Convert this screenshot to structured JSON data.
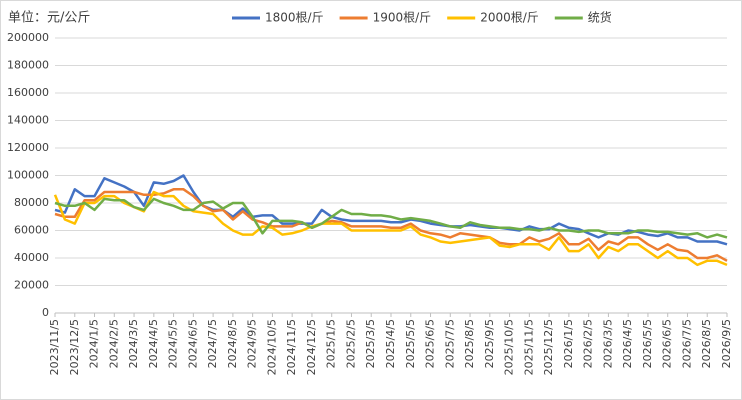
{
  "chart_data": {
    "type": "line",
    "unit_label": "单位：元/公斤",
    "categories": [
      "2023/11/5",
      null,
      "2023/12/5",
      null,
      "2024/1/5",
      null,
      "2024/2/5",
      null,
      "2024/3/5",
      null,
      "2024/4/5",
      null,
      "2024/5/5",
      null,
      "2024/6/5",
      null,
      "2024/7/5",
      null,
      "2024/8/5",
      null,
      "2024/9/5",
      null,
      "2024/10/5",
      null,
      "2024/11/5",
      null,
      "2024/12/5",
      null,
      "2025/1/5",
      null,
      "2025/2/5",
      null,
      "2025/3/5",
      null,
      "2025/4/5",
      null,
      "2025/5/5",
      null,
      "2025/6/5",
      null,
      "2025/7/5",
      null,
      "2025/8/5",
      null,
      "2025/9/5",
      null,
      "2025/10/5",
      null,
      "2025/11/5",
      null,
      "2025/12/5",
      null,
      "2026/1/5",
      null,
      "2026/2/5",
      null,
      "2026/3/5",
      null,
      "2026/4/5",
      null,
      "2026/5/5",
      null,
      "2026/6/5",
      null,
      "2026/7/5",
      null,
      "2026/8/5",
      null,
      "2026/9/5"
    ],
    "series": [
      {
        "name": "1800根/斤",
        "color": "#4472c4",
        "values": [
          75000,
          73000,
          90000,
          85000,
          85000,
          98000,
          95000,
          92000,
          88000,
          78000,
          95000,
          94000,
          96000,
          100000,
          88000,
          78000,
          75000,
          75000,
          70000,
          76000,
          70000,
          71000,
          71000,
          65000,
          65000,
          65000,
          65000,
          75000,
          70000,
          68000,
          67000,
          67000,
          67000,
          67000,
          66000,
          66000,
          68000,
          67000,
          65000,
          64000,
          63000,
          63000,
          64000,
          63000,
          62000,
          62000,
          61000,
          60000,
          63000,
          61000,
          61000,
          65000,
          62000,
          61000,
          58000,
          55000,
          58000,
          57000,
          60000,
          59000,
          57000,
          56000,
          58000,
          55000,
          55000,
          52000,
          52000,
          52000,
          50000
        ]
      },
      {
        "name": "1900根/斤",
        "color": "#ed7d31",
        "values": [
          72000,
          70000,
          70000,
          82000,
          82000,
          88000,
          88000,
          88000,
          88000,
          86000,
          86000,
          87000,
          90000,
          90000,
          85000,
          78000,
          74000,
          75000,
          68000,
          74000,
          68000,
          66000,
          63000,
          63000,
          63000,
          66000,
          62000,
          65000,
          67000,
          66000,
          63000,
          63000,
          63000,
          63000,
          62000,
          62000,
          65000,
          60000,
          58000,
          57000,
          55000,
          58000,
          57000,
          56000,
          55000,
          51000,
          50000,
          50000,
          55000,
          52000,
          54000,
          58000,
          50000,
          50000,
          54000,
          46000,
          52000,
          50000,
          55000,
          55000,
          50000,
          46000,
          50000,
          46000,
          45000,
          40000,
          40000,
          42000,
          38000
        ]
      },
      {
        "name": "2000根/斤",
        "color": "#ffc000",
        "values": [
          86000,
          68000,
          65000,
          80000,
          80000,
          85000,
          85000,
          80000,
          77000,
          74000,
          88000,
          85000,
          85000,
          78000,
          74000,
          73000,
          72000,
          65000,
          60000,
          57000,
          57000,
          63000,
          62000,
          57000,
          58000,
          60000,
          63000,
          65000,
          65000,
          65000,
          60000,
          60000,
          60000,
          60000,
          60000,
          60000,
          63000,
          57000,
          55000,
          52000,
          51000,
          52000,
          53000,
          54000,
          55000,
          49000,
          48000,
          50000,
          50000,
          50000,
          46000,
          55000,
          45000,
          45000,
          50000,
          40000,
          48000,
          45000,
          50000,
          50000,
          45000,
          40000,
          45000,
          40000,
          40000,
          35000,
          38000,
          38000,
          35000
        ]
      },
      {
        "name": "统货",
        "color": "#70ad47",
        "values": [
          80000,
          78000,
          78000,
          80000,
          75000,
          83000,
          82000,
          82000,
          77000,
          75000,
          83000,
          80000,
          78000,
          75000,
          75000,
          80000,
          81000,
          76000,
          80000,
          80000,
          70000,
          58000,
          67000,
          67000,
          67000,
          66000,
          62000,
          65000,
          70000,
          75000,
          72000,
          72000,
          71000,
          71000,
          70000,
          68000,
          69000,
          68000,
          67000,
          65000,
          63000,
          62000,
          66000,
          64000,
          63000,
          62000,
          62000,
          61000,
          61000,
          60000,
          62000,
          60000,
          60000,
          59000,
          60000,
          60000,
          58000,
          58000,
          58000,
          60000,
          60000,
          59000,
          59000,
          58000,
          57000,
          58000,
          55000,
          57000,
          55000
        ]
      }
    ],
    "ylim": [
      0,
      200000
    ],
    "yticks": [
      0,
      20000,
      40000,
      60000,
      80000,
      100000,
      120000,
      140000,
      160000,
      180000,
      200000
    ],
    "grid": true,
    "legend": "top"
  }
}
